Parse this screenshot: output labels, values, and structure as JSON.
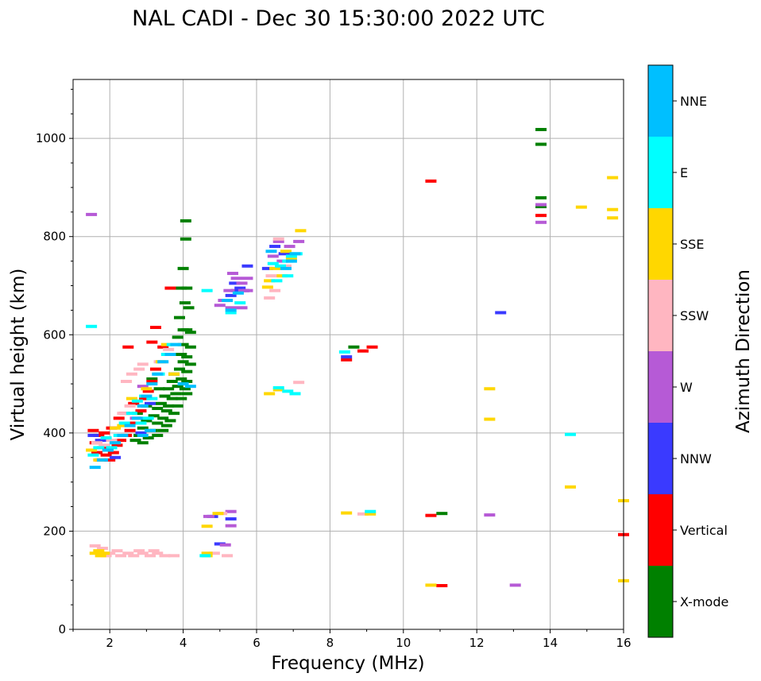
{
  "chart_data": {
    "type": "scatter",
    "title": "NAL CADI - Dec 30 15:30:00 2022 UTC",
    "xlabel": "Frequency (MHz)",
    "ylabel": "Virtual height (km)",
    "xlim": [
      1,
      16
    ],
    "ylim": [
      0,
      1120
    ],
    "xticks": [
      2,
      4,
      6,
      8,
      10,
      12,
      14,
      16
    ],
    "yticks": [
      0,
      200,
      400,
      600,
      800,
      1000
    ],
    "grid": true,
    "colorbar": {
      "label": "Azimuth Direction",
      "categories": [
        "X-mode",
        "Vertical",
        "NNW",
        "W",
        "SSW",
        "SSE",
        "E",
        "NNE"
      ],
      "colors": [
        "#008000",
        "#ff0000",
        "#3a3aff",
        "#b65ad6",
        "#ffb6c1",
        "#ffd700",
        "#00ffff",
        "#00bfff"
      ]
    },
    "series": [
      {
        "name": "X-mode",
        "points": [
          [
            4.07,
            832
          ],
          [
            4.07,
            795
          ],
          [
            4.0,
            735
          ],
          [
            3.95,
            695
          ],
          [
            4.1,
            695
          ],
          [
            4.05,
            665
          ],
          [
            4.15,
            655
          ],
          [
            3.9,
            635
          ],
          [
            4.0,
            610
          ],
          [
            4.1,
            610
          ],
          [
            4.2,
            605
          ],
          [
            3.85,
            595
          ],
          [
            4.0,
            580
          ],
          [
            4.2,
            575
          ],
          [
            3.95,
            560
          ],
          [
            4.1,
            555
          ],
          [
            4.0,
            545
          ],
          [
            4.2,
            540
          ],
          [
            3.9,
            530
          ],
          [
            4.1,
            525
          ],
          [
            3.75,
            520
          ],
          [
            3.95,
            510
          ],
          [
            4.1,
            505
          ],
          [
            3.7,
            505
          ],
          [
            3.85,
            495
          ],
          [
            4.05,
            490
          ],
          [
            3.6,
            490
          ],
          [
            3.8,
            480
          ],
          [
            4.1,
            480
          ],
          [
            3.5,
            475
          ],
          [
            3.7,
            470
          ],
          [
            3.95,
            470
          ],
          [
            3.4,
            460
          ],
          [
            3.6,
            455
          ],
          [
            3.85,
            455
          ],
          [
            3.3,
            450
          ],
          [
            3.55,
            445
          ],
          [
            3.75,
            440
          ],
          [
            3.2,
            435
          ],
          [
            3.45,
            430
          ],
          [
            3.65,
            425
          ],
          [
            3.0,
            425
          ],
          [
            3.3,
            420
          ],
          [
            3.55,
            415
          ],
          [
            2.9,
            410
          ],
          [
            3.15,
            405
          ],
          [
            3.45,
            405
          ],
          [
            2.8,
            395
          ],
          [
            3.05,
            390
          ],
          [
            3.3,
            395
          ],
          [
            2.7,
            385
          ],
          [
            2.9,
            380
          ],
          [
            3.15,
            510
          ],
          [
            3.0,
            455
          ],
          [
            2.75,
            440
          ],
          [
            2.6,
            420
          ],
          [
            3.35,
            490
          ],
          [
            13.75,
            988
          ],
          [
            13.75,
            879
          ],
          [
            13.75,
            861
          ],
          [
            8.65,
            575
          ],
          [
            11.05,
            236
          ],
          [
            13.75,
            1018
          ]
        ]
      },
      {
        "name": "Vertical",
        "points": [
          [
            1.55,
            405
          ],
          [
            1.7,
            395
          ],
          [
            1.6,
            380
          ],
          [
            1.8,
            370
          ],
          [
            1.65,
            360
          ],
          [
            1.9,
            355
          ],
          [
            1.75,
            345
          ],
          [
            2.0,
            345
          ],
          [
            2.1,
            360
          ],
          [
            2.2,
            375
          ],
          [
            2.3,
            385
          ],
          [
            2.45,
            395
          ],
          [
            2.55,
            405
          ],
          [
            2.7,
            420
          ],
          [
            2.85,
            445
          ],
          [
            2.95,
            470
          ],
          [
            3.05,
            485
          ],
          [
            3.15,
            505
          ],
          [
            3.25,
            530
          ],
          [
            2.65,
            460
          ],
          [
            2.4,
            440
          ],
          [
            2.25,
            430
          ],
          [
            2.05,
            410
          ],
          [
            1.85,
            400
          ],
          [
            3.45,
            575
          ],
          [
            3.15,
            585
          ],
          [
            3.25,
            615
          ],
          [
            3.65,
            695
          ],
          [
            2.5,
            575
          ],
          [
            10.75,
            913
          ],
          [
            13.75,
            843
          ],
          [
            9.15,
            575
          ],
          [
            8.9,
            567
          ],
          [
            8.45,
            549
          ],
          [
            10.75,
            232
          ],
          [
            11.05,
            89
          ],
          [
            16.0,
            193
          ]
        ]
      },
      {
        "name": "NNW",
        "points": [
          [
            1.55,
            395
          ],
          [
            1.75,
            385
          ],
          [
            1.95,
            365
          ],
          [
            2.15,
            350
          ],
          [
            5.45,
            690
          ],
          [
            5.3,
            680
          ],
          [
            5.55,
            695
          ],
          [
            5.2,
            670
          ],
          [
            5.65,
            690
          ],
          [
            5.4,
            705
          ],
          [
            5.75,
            740
          ],
          [
            6.5,
            780
          ],
          [
            6.3,
            735
          ],
          [
            6.75,
            765
          ],
          [
            12.65,
            645
          ],
          [
            5.0,
            174
          ],
          [
            4.8,
            230
          ],
          [
            5.3,
            225
          ],
          [
            8.45,
            555
          ],
          [
            2.85,
            400
          ],
          [
            3.1,
            460
          ]
        ]
      },
      {
        "name": "W",
        "points": [
          [
            1.5,
            845
          ],
          [
            6.6,
            790
          ],
          [
            6.9,
            780
          ],
          [
            7.15,
            790
          ],
          [
            6.45,
            760
          ],
          [
            6.7,
            750
          ],
          [
            5.6,
            705
          ],
          [
            5.45,
            715
          ],
          [
            5.75,
            715
          ],
          [
            5.25,
            690
          ],
          [
            5.1,
            670
          ],
          [
            5.3,
            655
          ],
          [
            5.0,
            660
          ],
          [
            5.6,
            655
          ],
          [
            5.75,
            690
          ],
          [
            5.35,
            725
          ],
          [
            5.65,
            690
          ],
          [
            4.7,
            230
          ],
          [
            5.3,
            240
          ],
          [
            5.3,
            211
          ],
          [
            5.15,
            172
          ],
          [
            13.75,
            865
          ],
          [
            13.75,
            829
          ],
          [
            12.35,
            233
          ],
          [
            13.05,
            90
          ],
          [
            2.7,
            430
          ],
          [
            2.9,
            495
          ]
        ]
      },
      {
        "name": "SSW",
        "points": [
          [
            1.6,
            170
          ],
          [
            1.8,
            165
          ],
          [
            2.0,
            155
          ],
          [
            2.3,
            150
          ],
          [
            2.5,
            155
          ],
          [
            2.65,
            150
          ],
          [
            2.9,
            155
          ],
          [
            3.1,
            150
          ],
          [
            3.3,
            155
          ],
          [
            3.5,
            150
          ],
          [
            3.75,
            150
          ],
          [
            2.8,
            160
          ],
          [
            3.2,
            160
          ],
          [
            1.9,
            150
          ],
          [
            2.2,
            160
          ],
          [
            6.6,
            795
          ],
          [
            6.4,
            720
          ],
          [
            6.8,
            740
          ],
          [
            6.5,
            690
          ],
          [
            6.35,
            675
          ],
          [
            7.15,
            503
          ],
          [
            5.05,
            236
          ],
          [
            5.2,
            150
          ],
          [
            4.85,
            155
          ],
          [
            8.9,
            235
          ],
          [
            2.6,
            520
          ],
          [
            2.8,
            530
          ],
          [
            2.45,
            505
          ],
          [
            2.9,
            540
          ],
          [
            2.35,
            440
          ],
          [
            2.55,
            455
          ],
          [
            1.65,
            380
          ],
          [
            1.85,
            375
          ],
          [
            2.05,
            385
          ],
          [
            3.35,
            545
          ],
          [
            3.6,
            570
          ]
        ]
      },
      {
        "name": "SSE",
        "points": [
          [
            1.7,
            160
          ],
          [
            1.75,
            150
          ],
          [
            1.85,
            155
          ],
          [
            1.6,
            155
          ],
          [
            4.65,
            155
          ],
          [
            4.65,
            150
          ],
          [
            4.65,
            210
          ],
          [
            4.95,
            236
          ],
          [
            6.7,
            720
          ],
          [
            6.5,
            735
          ],
          [
            6.35,
            710
          ],
          [
            6.95,
            755
          ],
          [
            6.8,
            770
          ],
          [
            7.2,
            812
          ],
          [
            6.3,
            697
          ],
          [
            6.35,
            480
          ],
          [
            6.6,
            488
          ],
          [
            8.45,
            237
          ],
          [
            9.1,
            235
          ],
          [
            10.75,
            90
          ],
          [
            12.35,
            490
          ],
          [
            12.35,
            428
          ],
          [
            14.55,
            290
          ],
          [
            14.85,
            860
          ],
          [
            15.7,
            920
          ],
          [
            15.7,
            855
          ],
          [
            15.7,
            838
          ],
          [
            16.0,
            262
          ],
          [
            16.0,
            99
          ],
          [
            2.35,
            415
          ],
          [
            2.6,
            470
          ],
          [
            3.0,
            490
          ],
          [
            3.4,
            545
          ],
          [
            1.5,
            365
          ],
          [
            1.7,
            345
          ],
          [
            2.15,
            410
          ],
          [
            3.55,
            580
          ],
          [
            3.75,
            520
          ]
        ]
      },
      {
        "name": "E",
        "points": [
          [
            1.5,
            617
          ],
          [
            5.3,
            645
          ],
          [
            5.55,
            665
          ],
          [
            6.85,
            750
          ],
          [
            6.65,
            740
          ],
          [
            6.45,
            745
          ],
          [
            6.55,
            710
          ],
          [
            6.85,
            720
          ],
          [
            6.95,
            760
          ],
          [
            7.1,
            765
          ],
          [
            7.05,
            480
          ],
          [
            6.85,
            485
          ],
          [
            6.6,
            492
          ],
          [
            8.4,
            565
          ],
          [
            9.1,
            240
          ],
          [
            14.55,
            397
          ],
          [
            1.55,
            355
          ],
          [
            1.7,
            370
          ],
          [
            1.9,
            390
          ],
          [
            2.05,
            370
          ],
          [
            2.25,
            395
          ],
          [
            2.4,
            420
          ],
          [
            2.6,
            440
          ],
          [
            2.75,
            465
          ],
          [
            2.95,
            475
          ],
          [
            3.15,
            470
          ],
          [
            3.35,
            520
          ],
          [
            3.55,
            560
          ],
          [
            3.7,
            580
          ],
          [
            3.05,
            430
          ],
          [
            2.85,
            420
          ],
          [
            4.65,
            690
          ],
          [
            4.6,
            150
          ]
        ]
      },
      {
        "name": "NNE",
        "points": [
          [
            5.3,
            650
          ],
          [
            5.2,
            670
          ],
          [
            5.5,
            685
          ],
          [
            6.8,
            735
          ],
          [
            6.4,
            770
          ],
          [
            6.95,
            750
          ],
          [
            7.05,
            765
          ],
          [
            4.0,
            500
          ],
          [
            4.2,
            495
          ],
          [
            3.8,
            580
          ],
          [
            3.65,
            560
          ],
          [
            3.45,
            545
          ],
          [
            3.3,
            520
          ],
          [
            3.15,
            500
          ],
          [
            3.0,
            475
          ],
          [
            2.9,
            455
          ],
          [
            2.75,
            430
          ],
          [
            2.55,
            415
          ],
          [
            2.35,
            395
          ],
          [
            2.15,
            380
          ],
          [
            1.95,
            365
          ],
          [
            1.8,
            345
          ],
          [
            1.6,
            330
          ],
          [
            3.1,
            405
          ],
          [
            2.9,
            395
          ]
        ]
      }
    ]
  }
}
